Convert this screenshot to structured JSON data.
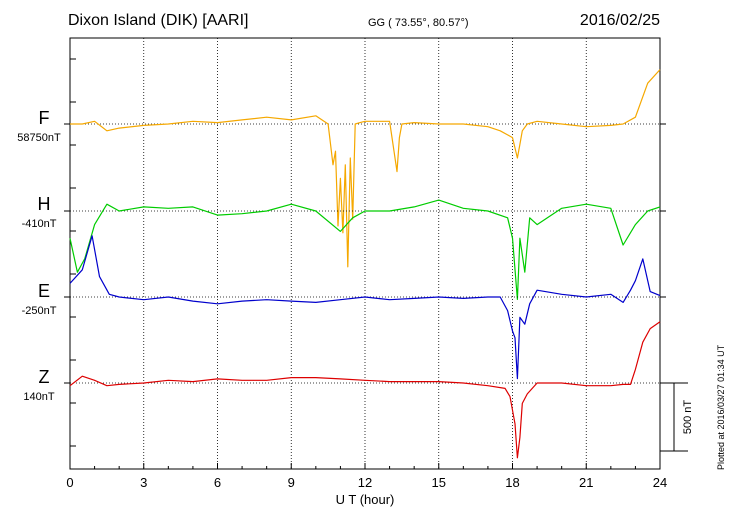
{
  "header": {
    "title": "Dixon Island (DIK)  [AARI]",
    "coords": "GG ( 73.55°,  80.57°)",
    "date": "2016/02/25"
  },
  "footer": {
    "plotted": "Plotted at 2016/03/27 01:34 UT"
  },
  "chart_data": {
    "type": "line",
    "xlabel": "U T (hour)",
    "xlim": [
      0,
      24
    ],
    "x_ticks": [
      "0",
      "3",
      "6",
      "9",
      "12",
      "15",
      "18",
      "21",
      "24"
    ],
    "scale_bar_label": "500 nT",
    "scale_bar_nT": 500,
    "grid": true,
    "series": [
      {
        "name": "F",
        "baseline_label": "58750nT",
        "color": "#f5a800",
        "x": [
          0,
          0.5,
          1,
          1.5,
          2,
          3,
          4,
          5,
          6,
          7,
          8,
          9,
          10,
          10.5,
          10.7,
          10.8,
          10.9,
          11,
          11.1,
          11.2,
          11.3,
          11.4,
          11.5,
          11.6,
          11.8,
          12,
          13,
          13.3,
          13.4,
          13.5,
          14,
          15,
          16,
          17,
          17.5,
          17.8,
          18,
          18.2,
          18.3,
          18.4,
          18.6,
          19,
          20,
          21,
          22,
          22.5,
          23,
          23.5,
          24
        ],
        "y": [
          0,
          0,
          20,
          -50,
          -30,
          -10,
          0,
          20,
          10,
          30,
          50,
          30,
          60,
          0,
          -300,
          -200,
          -750,
          -400,
          -800,
          -300,
          -1050,
          -250,
          -700,
          0,
          10,
          20,
          20,
          -350,
          -100,
          0,
          10,
          0,
          0,
          -20,
          -50,
          -80,
          -100,
          -250,
          -150,
          -50,
          0,
          20,
          0,
          -20,
          -10,
          0,
          50,
          300,
          400
        ]
      },
      {
        "name": "H",
        "baseline_label": "-410nT",
        "color": "#00cc00",
        "x": [
          0,
          0.3,
          0.6,
          1,
          1.5,
          2,
          3,
          4,
          5,
          6,
          7,
          8,
          9,
          10,
          11,
          11.5,
          12,
          13,
          14,
          15,
          16,
          17,
          17.8,
          18,
          18.2,
          18.3,
          18.5,
          18.7,
          19,
          20,
          21,
          22,
          22.5,
          23,
          23.5,
          24
        ],
        "y": [
          -200,
          -450,
          -350,
          -100,
          50,
          0,
          30,
          20,
          30,
          -30,
          -20,
          0,
          50,
          0,
          -150,
          -50,
          0,
          0,
          30,
          80,
          20,
          0,
          -50,
          -200,
          -650,
          -200,
          -450,
          -50,
          -100,
          20,
          50,
          20,
          -250,
          -100,
          0,
          30
        ]
      },
      {
        "name": "E",
        "baseline_label": "-250nT",
        "color": "#0000cc",
        "x": [
          0,
          0.5,
          0.9,
          1.2,
          1.6,
          2,
          3,
          4,
          5,
          6,
          7,
          8,
          9,
          10,
          11,
          12,
          13,
          14,
          15,
          16,
          17,
          17.5,
          17.8,
          18,
          18.1,
          18.2,
          18.3,
          18.5,
          18.7,
          19,
          20,
          21,
          22,
          22.5,
          22.8,
          23,
          23.3,
          23.6,
          24
        ],
        "y": [
          100,
          200,
          450,
          150,
          20,
          0,
          -20,
          0,
          -30,
          -50,
          -30,
          -20,
          -30,
          -40,
          -20,
          0,
          -20,
          -10,
          0,
          -10,
          0,
          0,
          -100,
          -250,
          -300,
          -600,
          -150,
          -200,
          -50,
          50,
          20,
          0,
          20,
          -40,
          50,
          120,
          280,
          40,
          10
        ]
      },
      {
        "name": "Z",
        "baseline_label": "140nT",
        "color": "#dd0000",
        "x": [
          0,
          0.5,
          1,
          1.5,
          2,
          3,
          4,
          5,
          6,
          7,
          8,
          9,
          10,
          11,
          12,
          13,
          14,
          15,
          16,
          17,
          17.7,
          17.9,
          18,
          18.1,
          18.2,
          18.3,
          18.4,
          18.6,
          19,
          20,
          21,
          22,
          22.5,
          22.8,
          23,
          23.3,
          23.6,
          24
        ],
        "y": [
          -20,
          50,
          20,
          -20,
          -10,
          0,
          20,
          10,
          30,
          20,
          20,
          40,
          40,
          30,
          20,
          10,
          10,
          10,
          0,
          -20,
          -40,
          -100,
          -200,
          -300,
          -550,
          -400,
          -150,
          -80,
          0,
          0,
          -20,
          -20,
          -10,
          -10,
          100,
          300,
          400,
          450
        ]
      }
    ]
  }
}
